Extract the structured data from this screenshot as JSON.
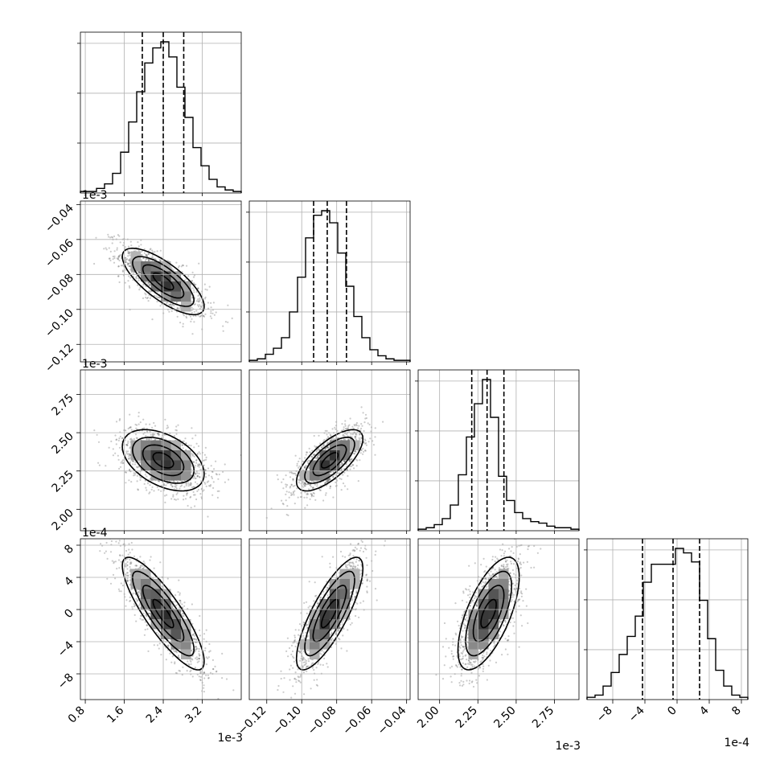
{
  "chart_data": {
    "type": "corner",
    "parameters": [
      {
        "exponent_label": "1e-3",
        "range": [
          0.0007,
          0.004
        ],
        "ticks": [
          0.0008,
          0.0016,
          0.0024,
          0.0032
        ],
        "tick_labels": [
          "0.8",
          "1.6",
          "2.4",
          "3.2"
        ],
        "quantiles": [
          0.00197,
          0.0024,
          0.00282
        ],
        "mean": 0.0024,
        "sd": 0.00042
      },
      {
        "exponent_label": "",
        "range": [
          -0.13,
          -0.038
        ],
        "ticks": [
          -0.12,
          -0.1,
          -0.08,
          -0.06,
          -0.04
        ],
        "tick_labels": [
          "−0.12",
          "−0.10",
          "−0.08",
          "−0.06",
          "−0.04"
        ],
        "quantiles": [
          -0.0932,
          -0.0854,
          -0.0744
        ],
        "mean": -0.084,
        "sd": 0.0095
      },
      {
        "exponent_label": "1e-3",
        "range": [
          0.00186,
          0.00291
        ],
        "ticks": [
          0.002,
          0.00225,
          0.0025,
          0.00275
        ],
        "tick_labels": [
          "2.00",
          "2.25",
          "2.50",
          "2.75"
        ],
        "quantiles": [
          0.00221,
          0.00231,
          0.00242
        ],
        "mean": 0.00232,
        "sd": 0.0001
      },
      {
        "exponent_label": "1e-4",
        "range": [
          -0.00112,
          0.00088
        ],
        "ticks": [
          -0.0008,
          -0.0004,
          0.0,
          0.0004,
          0.0008
        ],
        "tick_labels": [
          "−8",
          "−4",
          "0",
          "4",
          "8"
        ],
        "quantiles": [
          -0.00043,
          -5e-05,
          0.00028
        ],
        "mean": -5e-05,
        "sd": 0.00035
      }
    ],
    "row_exponent_labels": [
      "",
      "1e-3",
      "1e-3",
      "1e-4"
    ],
    "histograms": [
      {
        "density": [
          0.01,
          0.01,
          0.03,
          0.06,
          0.13,
          0.27,
          0.47,
          0.67,
          0.86,
          0.96,
          1.0,
          0.9,
          0.7,
          0.5,
          0.3,
          0.18,
          0.09,
          0.04,
          0.02,
          0.01
        ]
      },
      {
        "density": [
          0.01,
          0.02,
          0.05,
          0.09,
          0.16,
          0.33,
          0.56,
          0.82,
          0.97,
          1.0,
          0.92,
          0.72,
          0.5,
          0.3,
          0.16,
          0.08,
          0.04,
          0.02,
          0.01,
          0.01
        ]
      },
      {
        "density": [
          0.01,
          0.02,
          0.04,
          0.08,
          0.17,
          0.37,
          0.62,
          0.84,
          1.0,
          0.75,
          0.36,
          0.2,
          0.12,
          0.08,
          0.06,
          0.05,
          0.03,
          0.02,
          0.02,
          0.01
        ]
      },
      {
        "density": [
          0.01,
          0.02,
          0.06,
          0.12,
          0.2,
          0.28,
          0.37,
          0.52,
          0.6,
          0.6,
          0.6,
          0.67,
          0.65,
          0.61,
          0.44,
          0.27,
          0.13,
          0.06,
          0.02,
          0.01
        ]
      }
    ],
    "correlations": [
      {
        "row": 1,
        "col": 0,
        "r": -0.75
      },
      {
        "row": 2,
        "col": 0,
        "r": -0.45
      },
      {
        "row": 2,
        "col": 1,
        "r": 0.7
      },
      {
        "row": 3,
        "col": 0,
        "r": -0.85
      },
      {
        "row": 3,
        "col": 1,
        "r": 0.8
      },
      {
        "row": 3,
        "col": 2,
        "r": 0.65
      }
    ],
    "contour_levels_sigma": [
      0.5,
      1.0,
      1.5,
      2.0
    ],
    "grid": true,
    "axis_labels": [
      "",
      "",
      "",
      ""
    ],
    "title": ""
  }
}
